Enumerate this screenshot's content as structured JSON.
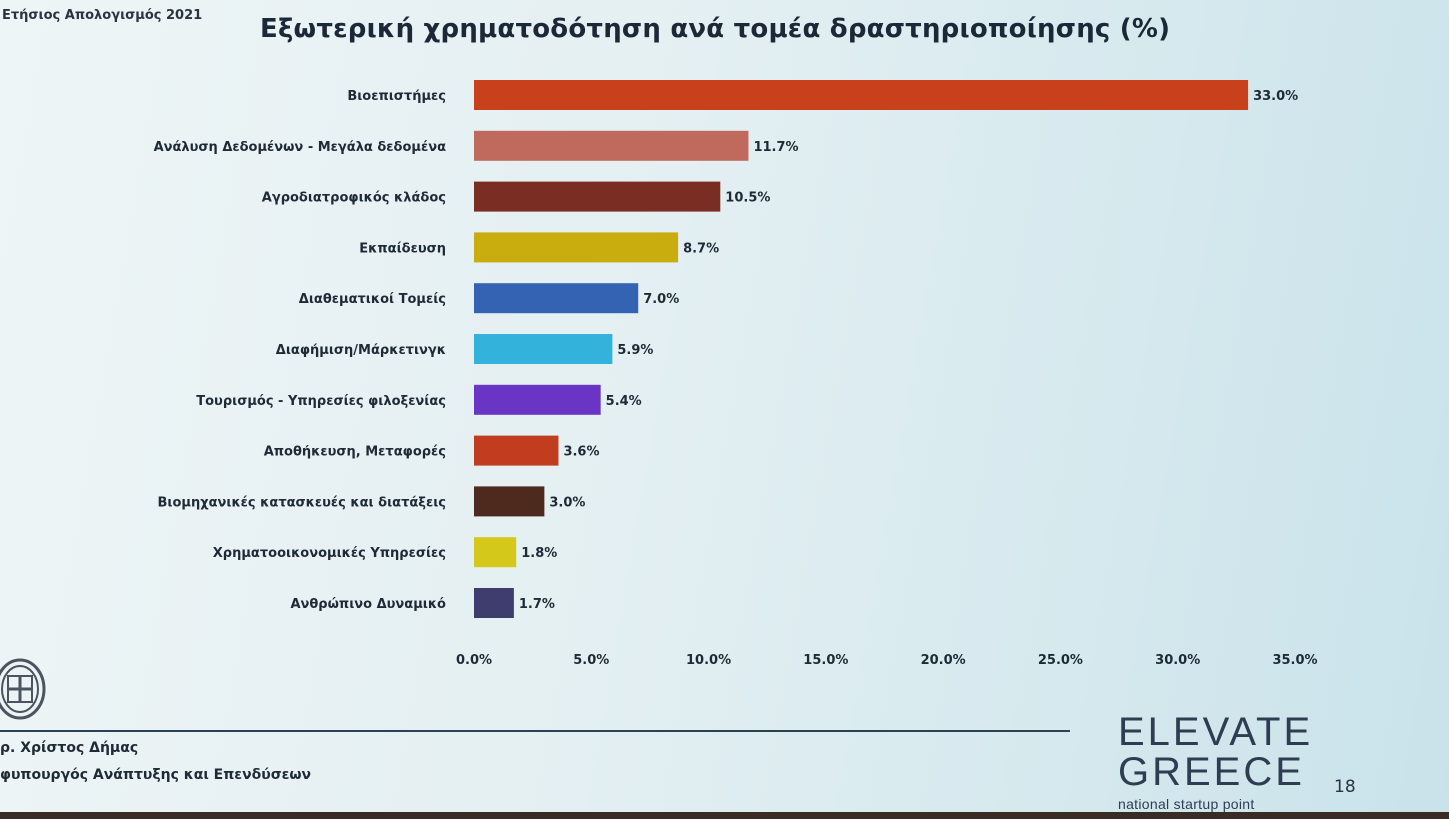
{
  "report_label": "Ετήσιος Απολογισμός 2021",
  "chart_data": {
    "type": "bar",
    "orientation": "horizontal",
    "title": "Εξωτερική χρηματοδότηση ανά τομέα δραστηριοποίησης (%)",
    "categories": [
      "Βιοεπιστήμες",
      "Ανάλυση Δεδομένων - Μεγάλα δεδομένα",
      "Αγροδιατροφικός κλάδος",
      "Εκπαίδευση",
      "Διαθεματικοί Τομείς",
      "Διαφήμιση/Μάρκετινγκ",
      "Τουρισμός - Υπηρεσίες φιλοξενίας",
      "Αποθήκευση, Μεταφορές",
      "Βιομηχανικές κατασκευές και διατάξεις",
      "Χρηματοοικονομικές Υπηρεσίες",
      "Ανθρώπινο Δυναμικό"
    ],
    "values": [
      33.0,
      11.7,
      10.5,
      8.7,
      7.0,
      5.9,
      5.4,
      3.6,
      3.0,
      1.8,
      1.7
    ],
    "value_labels": [
      "33.0%",
      "11.7%",
      "10.5%",
      "8.7%",
      "7.0%",
      "5.9%",
      "5.4%",
      "3.6%",
      "3.0%",
      "1.8%",
      "1.7%"
    ],
    "colors": [
      "#c9401c",
      "#c06a5e",
      "#7a2d22",
      "#c9ac0e",
      "#3463b4",
      "#33b3dc",
      "#6a34c4",
      "#c23d1f",
      "#4e2a1e",
      "#d4c81a",
      "#3f3d6e"
    ],
    "xlim": [
      0,
      35
    ],
    "xticks": [
      0,
      5,
      10,
      15,
      20,
      25,
      30,
      35
    ],
    "xtick_labels": [
      "0.0%",
      "5.0%",
      "10.0%",
      "15.0%",
      "20.0%",
      "25.0%",
      "30.0%",
      "35.0%"
    ],
    "grid": false,
    "legend": "none"
  },
  "footer": {
    "minister_name": "ρ. Χρίστος Δήμας",
    "minister_role": "φυπουργός Ανάπτυξης και Επενδύσεων",
    "page_number": "18"
  },
  "logo": {
    "line1": "ELEVATE",
    "line2": "GREECE",
    "tagline": "national startup point"
  }
}
